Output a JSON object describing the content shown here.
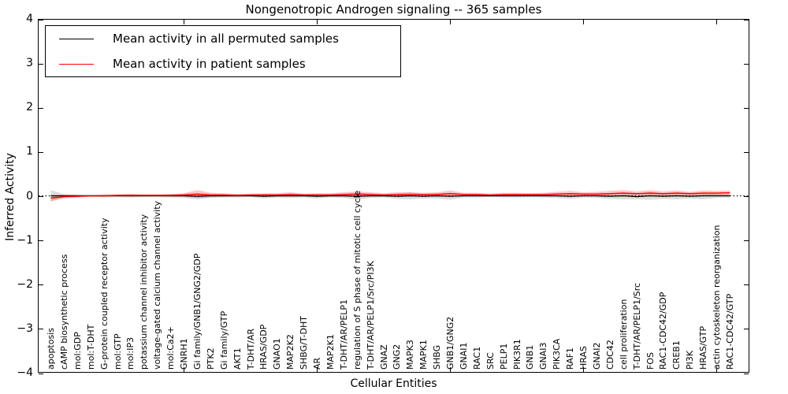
{
  "title": "Nongenotropic Androgen signaling -- 365 samples",
  "legend": {
    "items": [
      {
        "label": "Mean activity in all permuted samples",
        "color": "#000000"
      },
      {
        "label": "Mean activity in patient samples",
        "color": "#ff0000"
      }
    ]
  },
  "axes": {
    "ylabel": "Inferred Activity",
    "xlabel": "Cellular Entities",
    "yticks": [
      "4",
      "3",
      "2",
      "1",
      "0",
      "−1",
      "−2",
      "−3",
      "−4"
    ],
    "ylim": [
      -4,
      4
    ],
    "xtick_indices": [
      10,
      20,
      30,
      40,
      50
    ]
  },
  "chart_data": {
    "type": "line",
    "title": "Nongenotropic Androgen signaling -- 365 samples",
    "xlabel": "Cellular Entities",
    "ylabel": "Inferred Activity",
    "ylim": [
      -4,
      4
    ],
    "grid": false,
    "legend_position": "upper left",
    "zero_line": true,
    "categories": [
      "apoptosis",
      "cAMP biosynthetic process",
      "mol:GDP",
      "mol:T-DHT",
      "G-protein coupled receptor activity",
      "mol:GTP",
      "mol:IP3",
      "potassium channel inhibitor activity",
      "voltage-gated calcium channel activity",
      "mol:Ca2+",
      "GNRH1",
      "Gi family/GNB1/GNG2/GDP",
      "PTK2",
      "Gi family/GTP",
      "AKT1",
      "T-DHT/AR",
      "HRAS/GDP",
      "GNAO1",
      "MAP2K2",
      "SHBG/T-DHT",
      "AR",
      "MAP2K1",
      "T-DHT/AR/PELP1",
      "regulation of S phase of mitotic cell cycle",
      "T-DHT/AR/PELP1/Src/PI3K",
      "GNAZ",
      "GNG2",
      "MAPK3",
      "MAPK1",
      "SHBG",
      "GNB1/GNG2",
      "GNAI1",
      "RAC1",
      "SRC",
      "PELP1",
      "PIK3R1",
      "GNB1",
      "GNAI3",
      "PIK3CA",
      "RAF1",
      "HRAS",
      "GNAI2",
      "CDC42",
      "cell proliferation",
      "T-DHT/AR/PELP1/Src",
      "FOS",
      "RAC1-CDC42/GDP",
      "CREB1",
      "PI3K",
      "HRAS/GTP",
      "actin cytoskeleton reorganization",
      "RAC1-CDC42/GTP"
    ],
    "series": [
      {
        "name": "Mean activity in all permuted samples",
        "color": "#000000",
        "band_opacity": 0.13,
        "values": [
          0,
          0,
          0,
          0,
          0,
          0,
          0,
          0,
          0,
          0,
          0,
          -0.01,
          0,
          0,
          0,
          0,
          -0.01,
          0,
          0,
          0,
          -0.01,
          0,
          0,
          -0.01,
          0,
          0,
          -0.01,
          0,
          -0.01,
          0,
          -0.01,
          0,
          0,
          0,
          0,
          0,
          0,
          0,
          0,
          -0.01,
          0,
          0,
          -0.01,
          0,
          -0.02,
          0,
          -0.01,
          0,
          -0.01,
          0,
          0,
          0
        ],
        "band": [
          0.13,
          0.04,
          0.03,
          0.02,
          0.03,
          0.03,
          0.04,
          0.03,
          0.03,
          0.04,
          0.05,
          0.07,
          0.05,
          0.04,
          0.04,
          0.03,
          0.05,
          0.04,
          0.05,
          0.04,
          0.05,
          0.04,
          0.05,
          0.08,
          0.05,
          0.04,
          0.06,
          0.08,
          0.05,
          0.06,
          0.08,
          0.04,
          0.04,
          0.03,
          0.04,
          0.04,
          0.03,
          0.04,
          0.05,
          0.06,
          0.04,
          0.05,
          0.06,
          0.08,
          0.06,
          0.09,
          0.06,
          0.08,
          0.05,
          0.08,
          0.05,
          0.04
        ]
      },
      {
        "name": "Mean activity in patient samples",
        "color": "#ff0000",
        "band_opacity": 0.22,
        "values": [
          -0.05,
          -0.02,
          -0.01,
          0,
          0,
          0.01,
          0.01,
          0.01,
          0.01,
          0.01,
          0.02,
          0.04,
          0.02,
          0.02,
          0.01,
          0.02,
          0.02,
          0.02,
          0.03,
          0.02,
          0.02,
          0.02,
          0.03,
          0.04,
          0.03,
          0.02,
          0.03,
          0.03,
          0.03,
          0.03,
          0.05,
          0.03,
          0.03,
          0.02,
          0.03,
          0.03,
          0.03,
          0.03,
          0.04,
          0.05,
          0.04,
          0.04,
          0.05,
          0.06,
          0.05,
          0.06,
          0.05,
          0.06,
          0.05,
          0.06,
          0.06,
          0.07
        ],
        "band": [
          0.07,
          0.04,
          0.03,
          0.02,
          0.02,
          0.02,
          0.03,
          0.02,
          0.02,
          0.03,
          0.04,
          0.09,
          0.05,
          0.04,
          0.03,
          0.03,
          0.04,
          0.04,
          0.05,
          0.03,
          0.04,
          0.04,
          0.05,
          0.06,
          0.05,
          0.04,
          0.05,
          0.05,
          0.04,
          0.05,
          0.07,
          0.04,
          0.04,
          0.03,
          0.04,
          0.04,
          0.03,
          0.04,
          0.05,
          0.06,
          0.04,
          0.05,
          0.06,
          0.07,
          0.05,
          0.07,
          0.05,
          0.06,
          0.04,
          0.06,
          0.05,
          0.05
        ]
      }
    ]
  }
}
